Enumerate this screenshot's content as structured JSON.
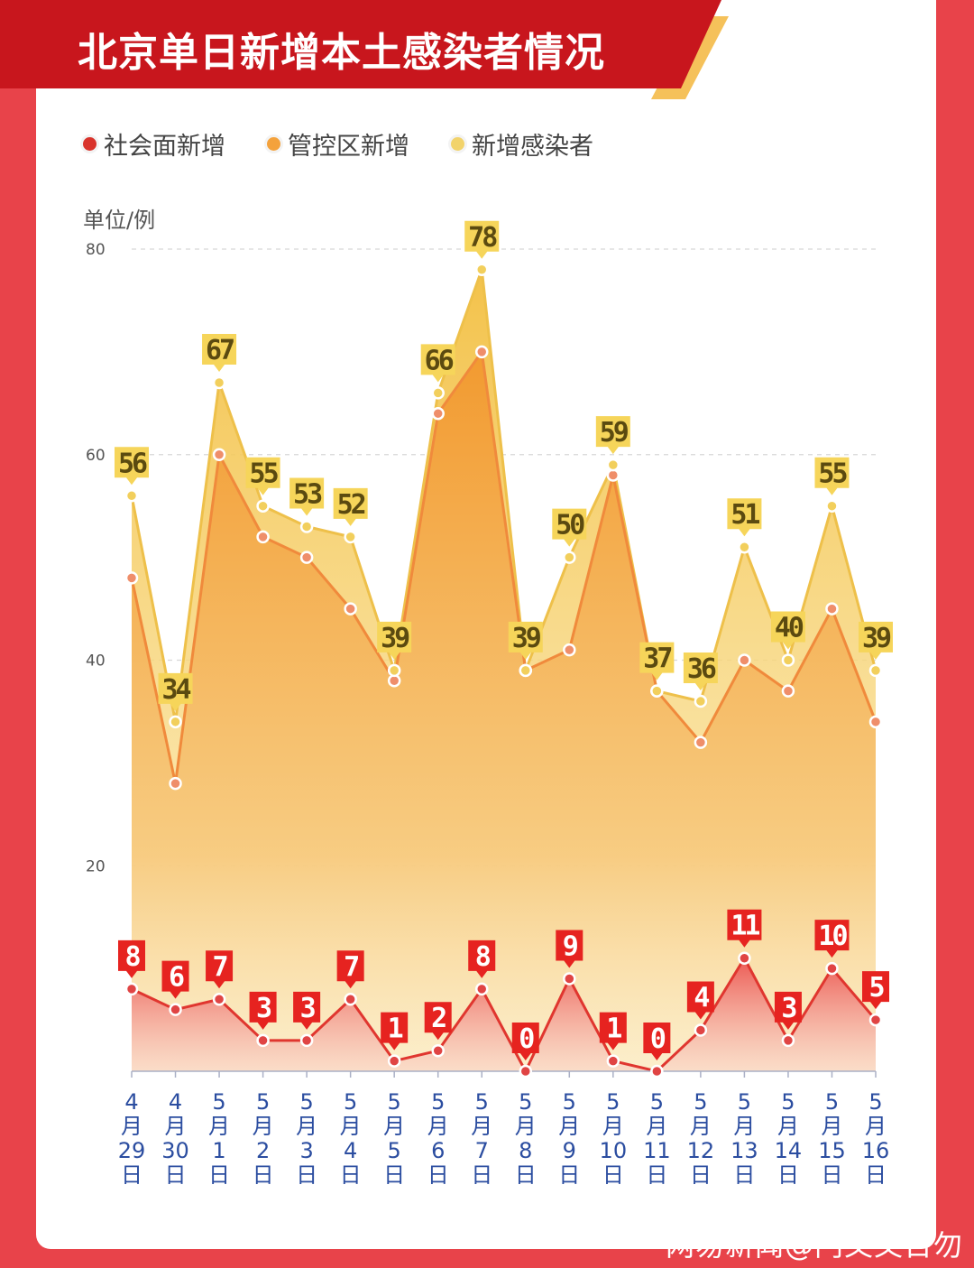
{
  "header": {
    "title": "北京单日新增本土感染者情况",
    "band_color": "#c8161d",
    "accent_color": "#f5c15a"
  },
  "legend": [
    {
      "label": "社会面新增",
      "color": "#d9332b"
    },
    {
      "label": "管控区新增",
      "color": "#f4a23c"
    },
    {
      "label": "新增感染者",
      "color": "#f2d36b"
    }
  ],
  "chart_data": {
    "type": "area",
    "unit_label": "单位/例",
    "y_ticks": [
      20,
      40,
      60,
      80
    ],
    "ylim": [
      0,
      80
    ],
    "categories": [
      [
        "4",
        "月",
        "29",
        "日"
      ],
      [
        "4",
        "月",
        "30",
        "日"
      ],
      [
        "5",
        "月",
        "1",
        "日"
      ],
      [
        "5",
        "月",
        "2",
        "日"
      ],
      [
        "5",
        "月",
        "3",
        "日"
      ],
      [
        "5",
        "月",
        "4",
        "日"
      ],
      [
        "5",
        "月",
        "5",
        "日"
      ],
      [
        "5",
        "月",
        "6",
        "日"
      ],
      [
        "5",
        "月",
        "7",
        "日"
      ],
      [
        "5",
        "月",
        "8",
        "日"
      ],
      [
        "5",
        "月",
        "9",
        "日"
      ],
      [
        "5",
        "月",
        "10",
        "日"
      ],
      [
        "5",
        "月",
        "11",
        "日"
      ],
      [
        "5",
        "月",
        "12",
        "日"
      ],
      [
        "5",
        "月",
        "13",
        "日"
      ],
      [
        "5",
        "月",
        "14",
        "日"
      ],
      [
        "5",
        "月",
        "15",
        "日"
      ],
      [
        "5",
        "月",
        "16",
        "日"
      ]
    ],
    "series": [
      {
        "name": "新增感染者",
        "color": "#f2d36b",
        "values": [
          56,
          34,
          67,
          55,
          53,
          52,
          39,
          66,
          78,
          39,
          50,
          59,
          37,
          36,
          51,
          40,
          55,
          39
        ]
      },
      {
        "name": "管控区新增",
        "color": "#f4a23c",
        "values": [
          48,
          28,
          60,
          52,
          50,
          45,
          38,
          64,
          70,
          39,
          41,
          58,
          37,
          32,
          40,
          37,
          45,
          34
        ]
      },
      {
        "name": "社会面新增",
        "color": "#d9332b",
        "values": [
          8,
          6,
          7,
          3,
          3,
          7,
          1,
          2,
          8,
          0,
          9,
          1,
          0,
          4,
          11,
          3,
          10,
          5
        ]
      }
    ],
    "grid": true
  },
  "watermark": "网易新闻@门又又日勿"
}
